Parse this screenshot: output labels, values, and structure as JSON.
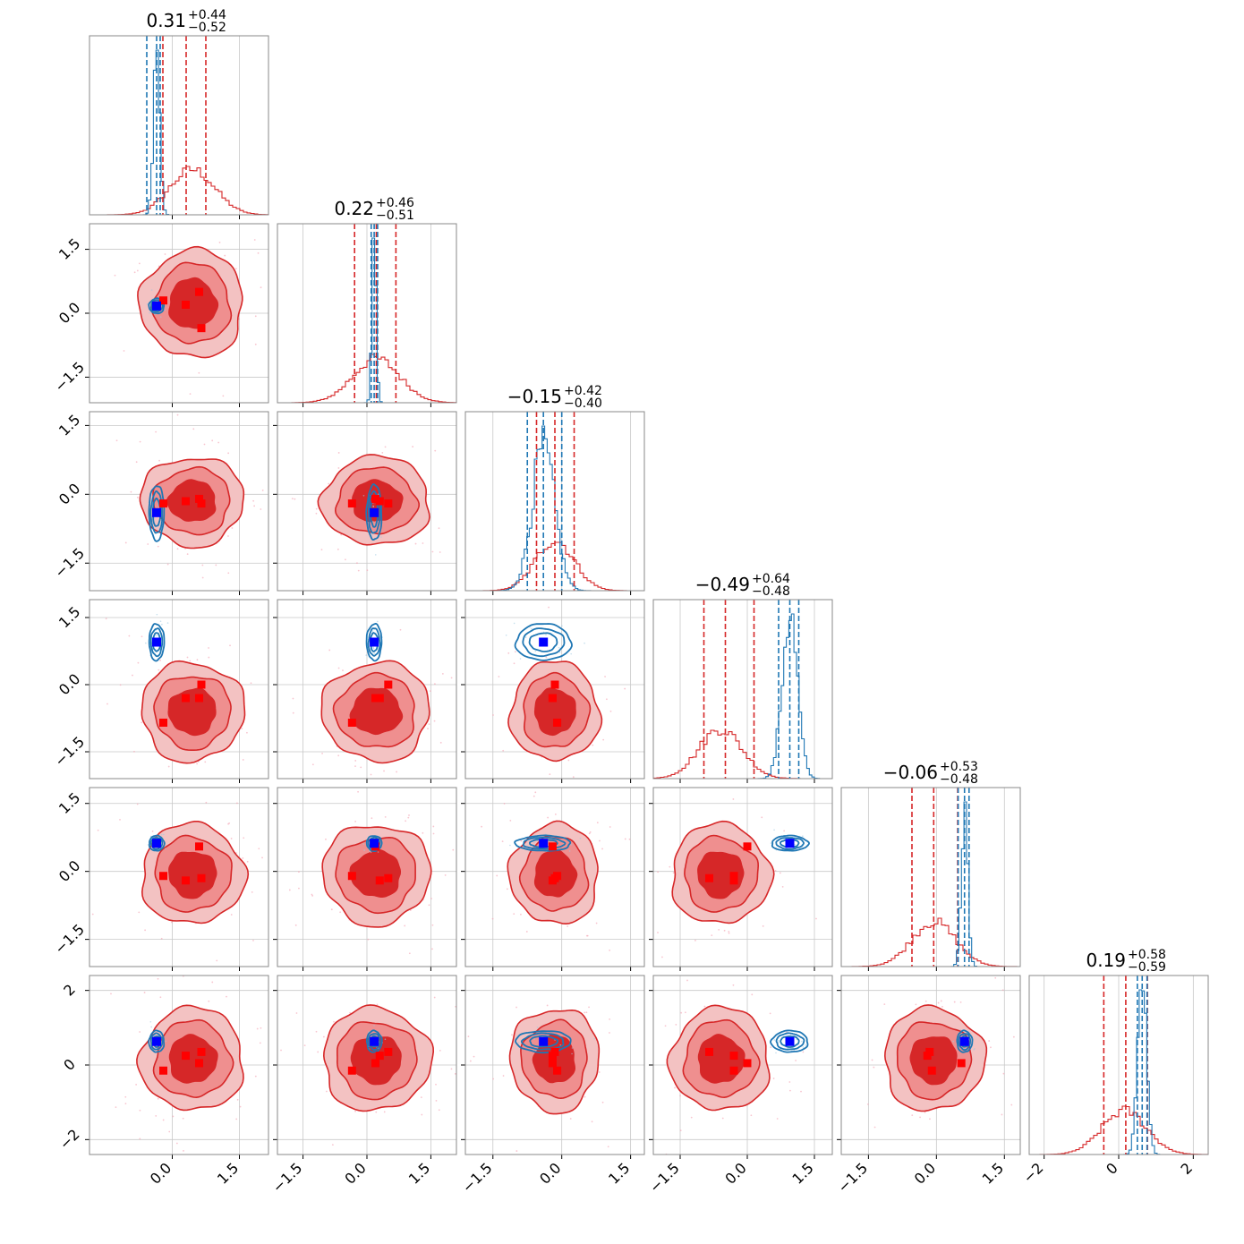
{
  "chart_data": {
    "type": "corner",
    "grid": true,
    "series": [
      {
        "name": "",
        "color": "#d62728",
        "style": "filled-contours-and-step-histograms"
      },
      {
        "name": "",
        "color": "#1f77b4",
        "style": "line-contours-and-step-histograms"
      }
    ],
    "marker_colors": {
      "red": "#ff0000",
      "blue": "#0000ff"
    },
    "titles": [
      {
        "center": "0.31",
        "plus": "+0.44",
        "minus": "−0.52"
      },
      {
        "center": "0.22",
        "plus": "+0.46",
        "minus": "−0.51"
      },
      {
        "center": "−0.15",
        "plus": "+0.42",
        "minus": "−0.40"
      },
      {
        "center": "−0.49",
        "plus": "+0.64",
        "minus": "−0.48"
      },
      {
        "center": "−0.06",
        "plus": "+0.53",
        "minus": "−0.48"
      },
      {
        "center": "0.19",
        "plus": "+0.58",
        "minus": "−0.59"
      }
    ],
    "params": [
      {
        "range": [
          -1.85,
          2.15
        ],
        "ticks": [
          0.0,
          1.5
        ],
        "tick_labels": [
          "0.0",
          "1.5"
        ],
        "red": {
          "mean": 0.45,
          "sd": 0.5
        },
        "blue": {
          "mean": -0.35,
          "sd": 0.07
        },
        "truth": -0.35,
        "red_q": [
          -0.21,
          0.31,
          0.75
        ],
        "blue_q": [
          -0.57,
          -0.35,
          -0.27
        ],
        "red_markers": [
          -0.2,
          0.3,
          0.6,
          0.65
        ]
      },
      {
        "range": [
          -2.1,
          2.1
        ],
        "ticks": [
          -1.5,
          0.0,
          1.5
        ],
        "tick_labels": [
          "−1.5",
          "0.0",
          "1.5"
        ],
        "red": {
          "mean": 0.22,
          "sd": 0.55
        },
        "blue": {
          "mean": 0.17,
          "sd": 0.05
        },
        "truth": 0.17,
        "red_q": [
          -0.29,
          0.22,
          0.68
        ],
        "blue_q": [
          0.1,
          0.17,
          0.25
        ],
        "red_markers": [
          -0.35,
          0.3,
          0.2,
          0.5
        ]
      },
      {
        "range": [
          -2.1,
          1.8
        ],
        "ticks": [
          -1.5,
          0.0,
          1.5
        ],
        "tick_labels": [
          "−1.5",
          "0.0",
          "1.5"
        ],
        "red": {
          "mean": -0.15,
          "sd": 0.42
        },
        "blue": {
          "mean": -0.4,
          "sd": 0.25
        },
        "truth": -0.4,
        "red_q": [
          -0.55,
          -0.15,
          0.27
        ],
        "blue_q": [
          -0.75,
          -0.4,
          0.0
        ],
        "red_markers": [
          -0.1,
          -0.2,
          -0.2,
          -0.15
        ]
      },
      {
        "range": [
          -2.1,
          1.9
        ],
        "ticks": [
          -1.5,
          0.0,
          1.5
        ],
        "tick_labels": [
          "−1.5",
          "0.0",
          "1.5"
        ],
        "red": {
          "mean": -0.6,
          "sd": 0.48
        },
        "blue": {
          "mean": 0.95,
          "sd": 0.17
        },
        "truth": 0.95,
        "red_q": [
          -0.97,
          -0.49,
          0.15
        ],
        "blue_q": [
          0.7,
          0.95,
          1.15
        ],
        "red_markers": [
          -0.3,
          -0.3,
          0.0,
          -0.85
        ]
      },
      {
        "range": [
          -2.1,
          1.85
        ],
        "ticks": [
          -1.5,
          0.0,
          1.5
        ],
        "tick_labels": [
          "−1.5",
          "0.0",
          "1.5"
        ],
        "red": {
          "mean": -0.06,
          "sd": 0.48
        },
        "blue": {
          "mean": 0.62,
          "sd": 0.07
        },
        "truth": 0.62,
        "red_q": [
          -0.54,
          -0.06,
          0.47
        ],
        "blue_q": [
          0.48,
          0.62,
          0.72
        ],
        "red_markers": [
          -0.1,
          -0.2,
          0.55,
          -0.15
        ]
      },
      {
        "range": [
          -2.4,
          2.4
        ],
        "ticks": [
          -2,
          0,
          2
        ],
        "tick_labels": [
          "−2",
          "0",
          "2"
        ],
        "red": {
          "mean": 0.15,
          "sd": 0.6
        },
        "blue": {
          "mean": 0.63,
          "sd": 0.12
        },
        "truth": 0.63,
        "red_q": [
          -0.4,
          0.19,
          0.77
        ],
        "blue_q": [
          0.5,
          0.63,
          0.76
        ],
        "red_markers": [
          0.35,
          -0.15,
          0.25,
          0.05
        ]
      }
    ]
  }
}
